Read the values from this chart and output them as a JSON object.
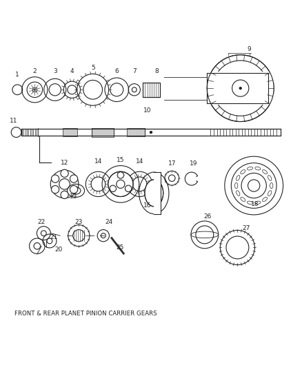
{
  "title": "FRONT & REAR PLANET PINION CARRIER GEARS",
  "bg_color": "#ffffff",
  "line_color": "#222222",
  "label_color": "#222222",
  "figsize": [
    4.38,
    5.33
  ],
  "dpi": 100
}
